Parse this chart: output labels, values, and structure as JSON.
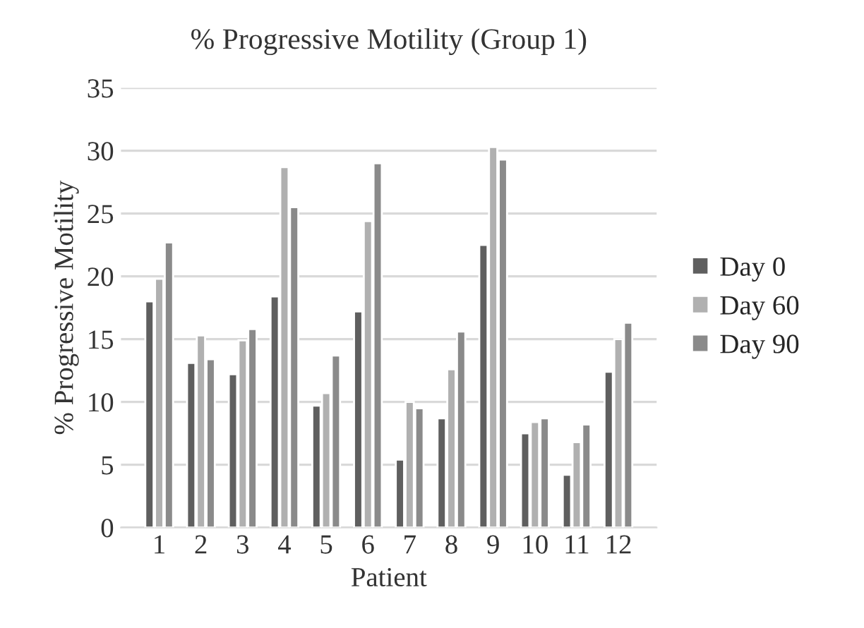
{
  "chart_data": {
    "type": "bar",
    "title": "% Progressive Motility (Group 1)",
    "xlabel": "Patient",
    "ylabel": "% Progressive Motility",
    "categories": [
      "1",
      "2",
      "3",
      "4",
      "5",
      "6",
      "7",
      "8",
      "9",
      "10",
      "11",
      "12"
    ],
    "series": [
      {
        "name": "Day 0",
        "color": "#5f5f5f",
        "values": [
          18.0,
          13.1,
          12.2,
          18.4,
          9.7,
          17.2,
          5.4,
          8.7,
          22.5,
          7.5,
          4.2,
          12.4
        ]
      },
      {
        "name": "Day 60",
        "color": "#b0b0b0",
        "values": [
          19.8,
          15.3,
          14.9,
          28.7,
          10.7,
          24.4,
          10.0,
          12.6,
          30.3,
          8.4,
          6.8,
          15.0
        ]
      },
      {
        "name": "Day 90",
        "color": "#8a8a8a",
        "values": [
          22.7,
          13.4,
          15.8,
          25.5,
          13.7,
          29.0,
          9.5,
          15.6,
          29.3,
          8.7,
          8.2,
          16.3
        ]
      }
    ],
    "ylim": [
      0,
      35
    ],
    "yticks": [
      0,
      5,
      10,
      15,
      20,
      25,
      30,
      35
    ],
    "grid": "y",
    "legend": "right"
  }
}
